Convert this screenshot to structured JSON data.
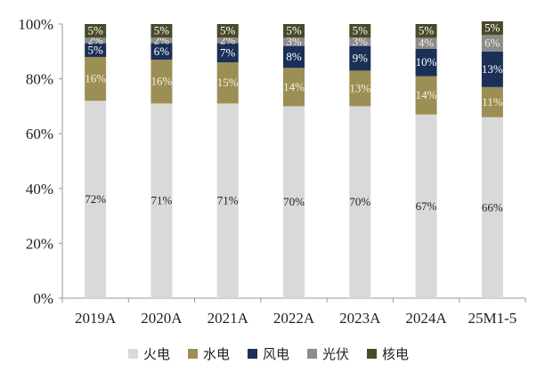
{
  "chart_data": {
    "type": "bar",
    "stacked": true,
    "categories": [
      "2019A",
      "2020A",
      "2021A",
      "2022A",
      "2023A",
      "2024A",
      "25M1-5"
    ],
    "ylim": [
      0,
      100
    ],
    "yticks": [
      "0%",
      "20%",
      "40%",
      "60%",
      "80%",
      "100%"
    ],
    "legend_position": "bottom",
    "series": [
      {
        "name": "火电",
        "color": "#d9d9d9",
        "values": [
          72,
          71,
          71,
          70,
          70,
          67,
          66
        ],
        "labels": [
          "72%",
          "71%",
          "71%",
          "70%",
          "70%",
          "67%",
          "66%"
        ]
      },
      {
        "name": "水电",
        "color": "#9c8f56",
        "values": [
          16,
          16,
          15,
          14,
          13,
          14,
          11
        ],
        "labels": [
          "16%",
          "16%",
          "15%",
          "14%",
          "13%",
          "14%",
          "11%"
        ]
      },
      {
        "name": "风电",
        "color": "#1b2f57",
        "values": [
          5,
          6,
          7,
          8,
          9,
          10,
          13
        ],
        "labels": [
          "5%",
          "6%",
          "7%",
          "8%",
          "9%",
          "10%",
          "13%"
        ]
      },
      {
        "name": "光伏",
        "color": "#8c8c8c",
        "values": [
          2,
          2,
          2,
          3,
          3,
          4,
          6
        ],
        "labels": [
          "2%",
          "2%",
          "2%",
          "3%",
          "3%",
          "4%",
          "6%"
        ]
      },
      {
        "name": "核电",
        "color": "#4a4a2a",
        "values": [
          5,
          5,
          5,
          5,
          5,
          5,
          5
        ],
        "labels": [
          "5%",
          "5%",
          "5%",
          "5%",
          "5%",
          "5%",
          "5%"
        ]
      }
    ]
  }
}
